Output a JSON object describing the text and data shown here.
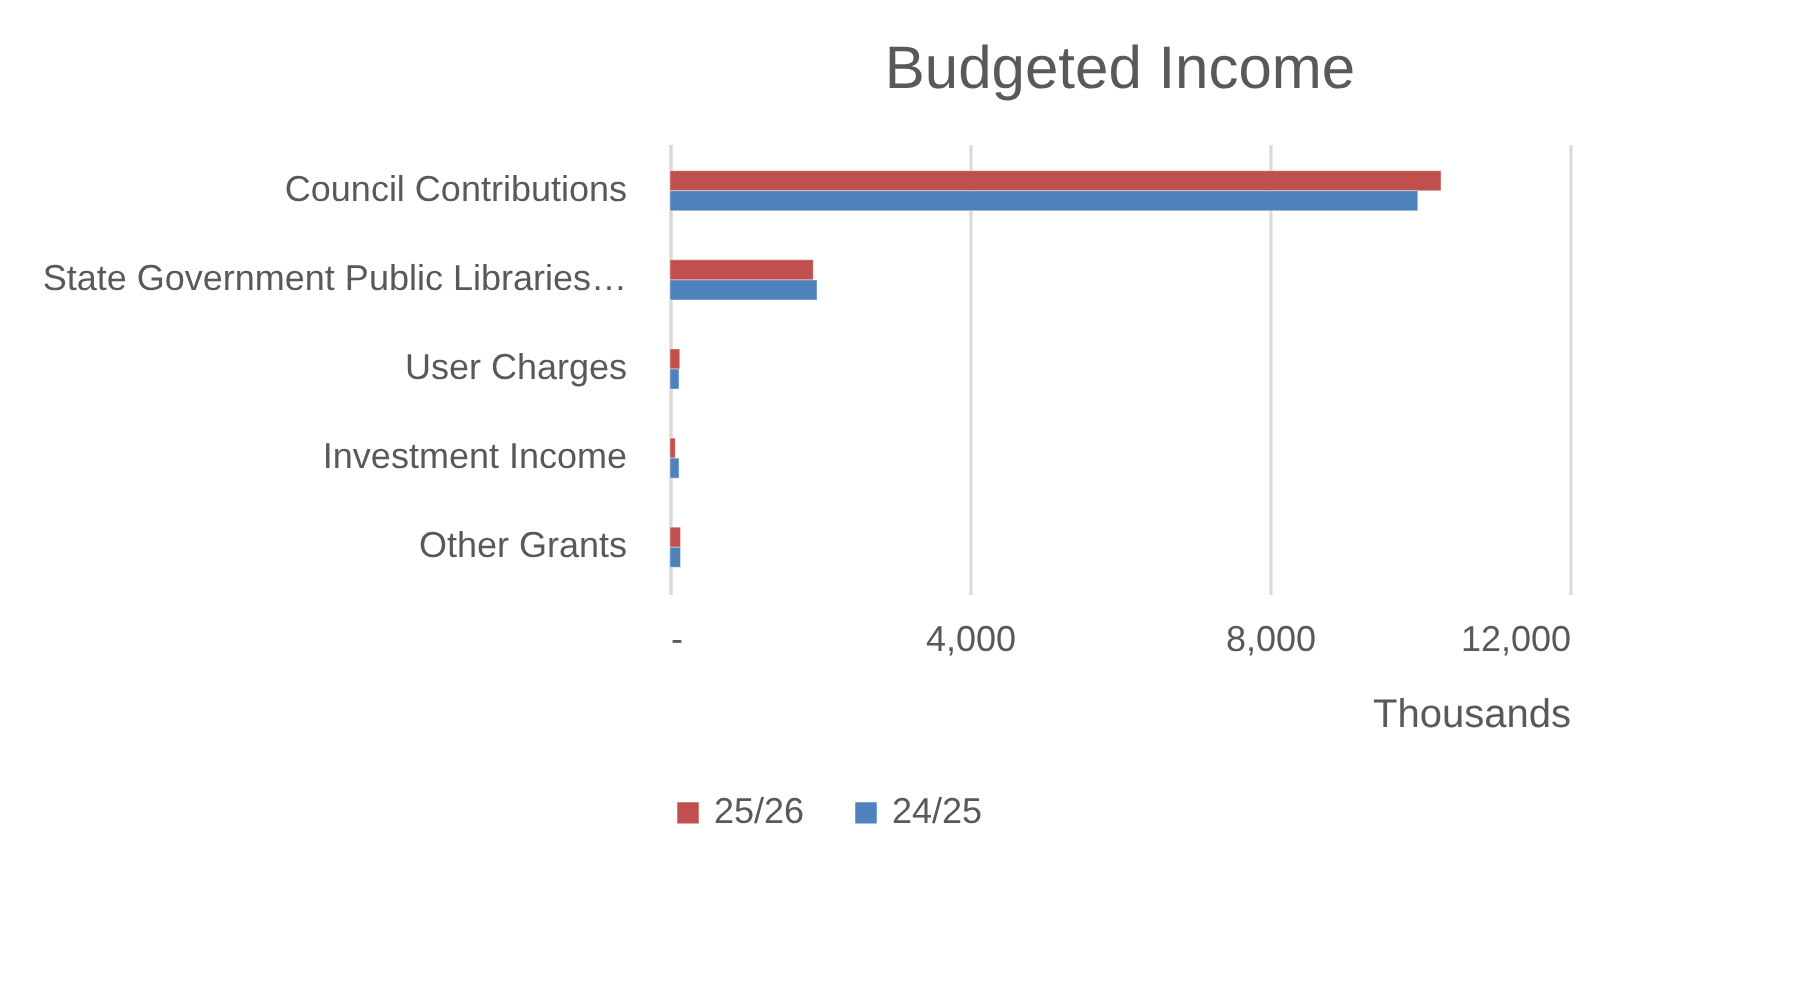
{
  "chart_data": {
    "type": "bar",
    "orientation": "horizontal",
    "title": "Budgeted  Income",
    "xlabel": "Thousands",
    "categories": [
      "Council Contributions",
      "State Government Public Libraries…",
      "User Charges",
      "Investment Income",
      "Other Grants"
    ],
    "series": [
      {
        "name": "25/26",
        "color": "#c0504d",
        "values": [
          10280,
          1910,
          130,
          70,
          140
        ]
      },
      {
        "name": "24/25",
        "color": "#4f81bd",
        "values": [
          9970,
          1960,
          120,
          120,
          140
        ]
      }
    ],
    "xlim": [
      0,
      12000
    ],
    "xticks": [
      {
        "value": 0,
        "label": "-"
      },
      {
        "value": 4000,
        "label": "4,000"
      },
      {
        "value": 8000,
        "label": "8,000"
      },
      {
        "value": 12000,
        "label": "12,000"
      }
    ],
    "grid": "x",
    "legend": "bottom"
  }
}
